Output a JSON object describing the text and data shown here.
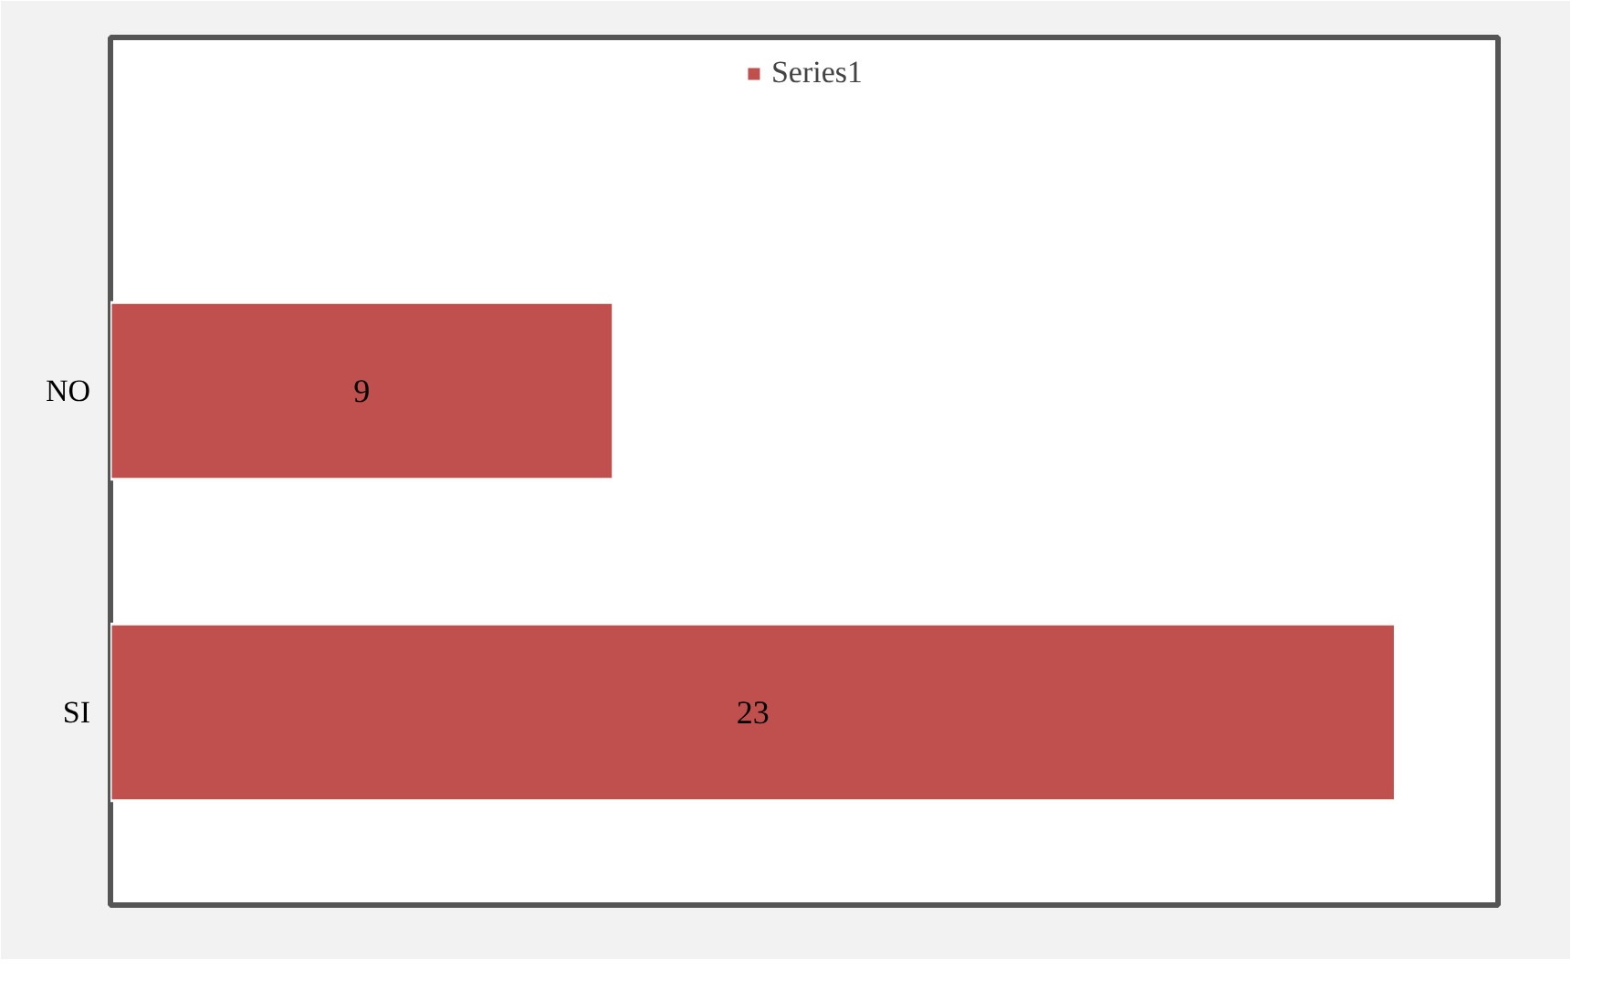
{
  "chart_data": {
    "type": "bar",
    "orientation": "horizontal",
    "categories": [
      "NO",
      "SI"
    ],
    "series": [
      {
        "name": "Series1",
        "color": "#c0504d",
        "values": [
          9,
          23
        ]
      }
    ],
    "data_labels": true,
    "legend": "top",
    "grid": false
  }
}
